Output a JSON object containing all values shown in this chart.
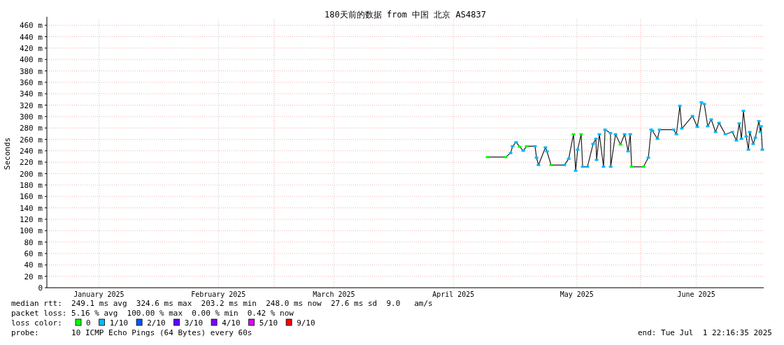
{
  "chart_data": {
    "type": "line",
    "title": "180天前的数据 from 中国 北京 AS4837",
    "ylabel": "Seconds",
    "xlim": [
      "2025-01-02T22:16",
      "2025-07-01T22:16"
    ],
    "xticks": [
      {
        "value": "2025-01-16",
        "label": "January 2025"
      },
      {
        "value": "2025-02-15",
        "label": "February 2025"
      },
      {
        "value": "2025-03-16",
        "label": "March 2025"
      },
      {
        "value": "2025-04-15",
        "label": "April 2025"
      },
      {
        "value": "2025-05-16",
        "label": "May 2025"
      },
      {
        "value": "2025-06-15",
        "label": "June 2025"
      }
    ],
    "ylim": [
      0,
      470
    ],
    "yticks": [
      0,
      {
        "value": 20,
        "label": "20 m"
      },
      {
        "value": 40,
        "label": "40 m"
      },
      {
        "value": 60,
        "label": "60 m"
      },
      {
        "value": 80,
        "label": "80 m"
      },
      {
        "value": 100,
        "label": "100 m"
      },
      {
        "value": 120,
        "label": "120 m"
      },
      {
        "value": 140,
        "label": "140 m"
      },
      {
        "value": 160,
        "label": "160 m"
      },
      {
        "value": 180,
        "label": "180 m"
      },
      {
        "value": 200,
        "label": "200 m"
      },
      {
        "value": 220,
        "label": "220 m"
      },
      {
        "value": 240,
        "label": "240 m"
      },
      {
        "value": 260,
        "label": "260 m"
      },
      {
        "value": 280,
        "label": "280 m"
      },
      {
        "value": 300,
        "label": "300 m"
      },
      {
        "value": 320,
        "label": "320 m"
      },
      {
        "value": 340,
        "label": "340 m"
      },
      {
        "value": 360,
        "label": "360 m"
      },
      {
        "value": 380,
        "label": "380 m"
      },
      {
        "value": 400,
        "label": "400 m"
      },
      {
        "value": 420,
        "label": "420 m"
      },
      {
        "value": 440,
        "label": "440 m"
      },
      {
        "value": 460,
        "label": "460 m"
      }
    ],
    "grid": true,
    "ref_lines": [
      {
        "axis": "x",
        "value": "2025-03-01",
        "color": "#f0a0a0",
        "line_style": "dotted"
      },
      {
        "axis": "x",
        "value": "2025-06-01",
        "color": "#f0a0a0",
        "line_style": "dotted"
      }
    ],
    "legend": "bottom",
    "legend_title": "loss color:",
    "x": [
      "2025-04-23T14:00",
      "2025-04-28T03:00",
      "2025-04-29T09:00",
      "2025-04-29T21:00",
      "2025-04-30T18:00",
      "2025-05-01T16:00",
      "2025-05-02T13:00",
      "2025-05-03T10:00",
      "2025-05-05T12:00",
      "2025-05-05T21:00",
      "2025-05-06T09:00",
      "2025-05-08T03:00",
      "2025-05-08T12:00",
      "2025-05-09T13:00",
      "2025-05-12T21:00",
      "2025-05-13T23:00",
      "2025-05-15T04:00",
      "2025-05-15T17:00",
      "2025-05-16T05:00",
      "2025-05-17T02:00",
      "2025-05-17T11:00",
      "2025-05-18T16:00",
      "2025-05-20T02:00",
      "2025-05-20T19:00",
      "2025-05-20T23:00",
      "2025-05-21T16:00",
      "2025-05-22T17:00",
      "2025-05-23T02:00",
      "2025-05-24T11:00",
      "2025-05-24T12:00",
      "2025-05-25T17:00",
      "2025-05-26T23:00",
      "2025-05-28T00:00",
      "2025-05-28T21:00",
      "2025-05-29T10:00",
      "2025-05-29T18:00",
      "2025-06-01T18:00",
      "2025-06-02T23:00",
      "2025-06-03T16:00",
      "2025-06-04T00:00",
      "2025-06-05T06:00",
      "2025-06-05T19:00",
      "2025-06-09T07:00",
      "2025-06-10T00:00",
      "2025-06-10T21:00",
      "2025-06-11T09:00",
      "2025-06-14T01:00",
      "2025-06-15T06:00",
      "2025-06-16T07:00",
      "2025-06-17T00:00",
      "2025-06-17T21:00",
      "2025-06-18T18:00",
      "2025-06-19T20:00",
      "2025-06-20T17:00",
      "2025-06-22T07:00",
      "2025-06-24T01:00",
      "2025-06-25T02:00",
      "2025-06-25T19:00",
      "2025-06-26T08:00",
      "2025-06-26T20:00",
      "2025-06-27T13:00",
      "2025-06-28T02:00",
      "2025-06-28T10:00",
      "2025-06-29T07:00",
      "2025-06-29T20:00",
      "2025-06-30T17:00",
      "2025-07-01T02:00",
      "2025-07-01T06:00",
      "2025-07-01T14:00"
    ],
    "series": [
      {
        "color": "#1e1e1e",
        "values": [
          229,
          229,
          236,
          248,
          255,
          247,
          240,
          248,
          248,
          228,
          215,
          246,
          239,
          215,
          215,
          226,
          269,
          205,
          242,
          269,
          212,
          212,
          252,
          261,
          224,
          269,
          212,
          277,
          271,
          212,
          269,
          251,
          269,
          239,
          269,
          212,
          212,
          228,
          277,
          275,
          261,
          277,
          277,
          269,
          319,
          279,
          301,
          282,
          325,
          322,
          283,
          295,
          273,
          289,
          269,
          273,
          258,
          288,
          261,
          310,
          265,
          242,
          273,
          252,
          263,
          292,
          273,
          283,
          242
        ],
        "line_style": "solid"
      },
      {
        "name": "0",
        "color": "#00ff00",
        "type": "scatter",
        "values": [
          229,
          229,
          null,
          null,
          null,
          247,
          null,
          248,
          null,
          null,
          null,
          null,
          null,
          215,
          null,
          null,
          269,
          null,
          null,
          269,
          null,
          null,
          null,
          null,
          null,
          null,
          null,
          null,
          null,
          null,
          null,
          251,
          null,
          null,
          null,
          212,
          212,
          null,
          null,
          null,
          null,
          null,
          null,
          null,
          null,
          null,
          null,
          null,
          null,
          null,
          null,
          null,
          null,
          null,
          null,
          null,
          null,
          null,
          null,
          null,
          null,
          null,
          null,
          null,
          null,
          null,
          null,
          null,
          null
        ]
      },
      {
        "name": "1/10",
        "color": "#00b8ff",
        "type": "scatter",
        "values": [
          null,
          null,
          236,
          248,
          255,
          null,
          240,
          null,
          248,
          228,
          215,
          246,
          239,
          null,
          215,
          226,
          null,
          205,
          242,
          null,
          212,
          212,
          252,
          261,
          224,
          269,
          212,
          277,
          271,
          212,
          269,
          null,
          269,
          239,
          269,
          null,
          null,
          228,
          277,
          275,
          261,
          277,
          277,
          269,
          319,
          279,
          301,
          282,
          325,
          322,
          283,
          295,
          273,
          289,
          269,
          273,
          258,
          288,
          261,
          310,
          265,
          242,
          273,
          252,
          263,
          292,
          273,
          283,
          242
        ]
      },
      {
        "name": "2/10",
        "color": "#0059ff",
        "type": "scatter",
        "values": [
          null,
          null,
          null,
          null,
          null,
          null,
          null,
          null,
          null,
          null,
          null,
          null,
          null,
          null,
          null,
          null,
          null,
          null,
          null,
          null,
          null,
          null,
          null,
          null,
          null,
          null,
          null,
          null,
          null,
          null,
          null,
          null,
          null,
          null,
          null,
          null,
          null,
          null,
          null,
          null,
          null,
          null,
          null,
          null,
          null,
          null,
          null,
          null,
          null,
          null,
          null,
          null,
          null,
          null,
          null,
          null,
          null,
          null,
          null,
          null,
          null,
          null,
          null,
          null,
          null,
          null,
          null,
          null,
          null
        ]
      },
      {
        "name": "3/10",
        "color": "#5e00ff",
        "type": "scatter",
        "values": [
          null,
          null,
          null,
          null,
          null,
          null,
          null,
          null,
          null,
          null,
          null,
          null,
          null,
          null,
          null,
          null,
          null,
          null,
          null,
          null,
          null,
          null,
          null,
          null,
          null,
          null,
          null,
          null,
          null,
          null,
          null,
          null,
          null,
          null,
          null,
          null,
          null,
          null,
          null,
          null,
          null,
          null,
          null,
          null,
          null,
          null,
          null,
          null,
          null,
          null,
          null,
          null,
          null,
          null,
          null,
          null,
          null,
          null,
          null,
          null,
          null,
          null,
          null,
          null,
          null,
          null,
          null,
          null,
          null
        ]
      },
      {
        "name": "4/10",
        "color": "#7e00ff",
        "type": "scatter",
        "values": [
          null,
          null,
          null,
          null,
          null,
          null,
          null,
          null,
          null,
          null,
          null,
          null,
          null,
          null,
          null,
          null,
          null,
          null,
          null,
          null,
          null,
          null,
          null,
          null,
          null,
          null,
          null,
          null,
          null,
          null,
          null,
          null,
          null,
          null,
          null,
          null,
          null,
          null,
          null,
          null,
          null,
          null,
          null,
          null,
          null,
          null,
          null,
          null,
          null,
          null,
          null,
          null,
          null,
          null,
          null,
          null,
          null,
          null,
          null,
          null,
          null,
          null,
          null,
          null,
          null,
          null,
          null,
          null,
          null
        ]
      },
      {
        "name": "5/10",
        "color": "#dd00ff",
        "type": "scatter",
        "values": [
          null,
          null,
          null,
          null,
          null,
          null,
          null,
          null,
          null,
          null,
          null,
          null,
          null,
          null,
          null,
          null,
          null,
          null,
          null,
          null,
          null,
          null,
          null,
          null,
          null,
          null,
          null,
          null,
          null,
          null,
          null,
          null,
          null,
          null,
          null,
          null,
          null,
          null,
          null,
          null,
          null,
          null,
          null,
          null,
          null,
          null,
          null,
          null,
          null,
          null,
          null,
          null,
          null,
          null,
          null,
          null,
          null,
          null,
          null,
          null,
          null,
          null,
          null,
          null,
          null,
          null,
          null,
          null,
          null
        ]
      },
      {
        "name": "9/10",
        "color": "#ff0000",
        "type": "scatter",
        "values": [
          null,
          null,
          null,
          null,
          null,
          null,
          null,
          null,
          null,
          null,
          null,
          null,
          null,
          null,
          null,
          null,
          null,
          null,
          null,
          null,
          null,
          null,
          null,
          null,
          null,
          null,
          null,
          null,
          null,
          null,
          null,
          null,
          null,
          null,
          null,
          null,
          null,
          null,
          null,
          null,
          null,
          null,
          null,
          null,
          null,
          null,
          null,
          null,
          null,
          null,
          null,
          null,
          null,
          null,
          null,
          null,
          null,
          null,
          null,
          null,
          null,
          null,
          null,
          null,
          null,
          null,
          null,
          null,
          null
        ]
      }
    ],
    "annotations": [
      "median rtt:  249.1 ms avg  324.6 ms max  203.2 ms min  248.0 ms now  27.6 ms sd  9.0   am/s",
      "packet loss: 5.16 % avg  100.00 % max  0.00 % min  0.42 % now",
      "probe:       10 ICMP Echo Pings (64 Bytes) every 60s",
      "end: Tue Jul  1 22:16:35 2025"
    ]
  }
}
